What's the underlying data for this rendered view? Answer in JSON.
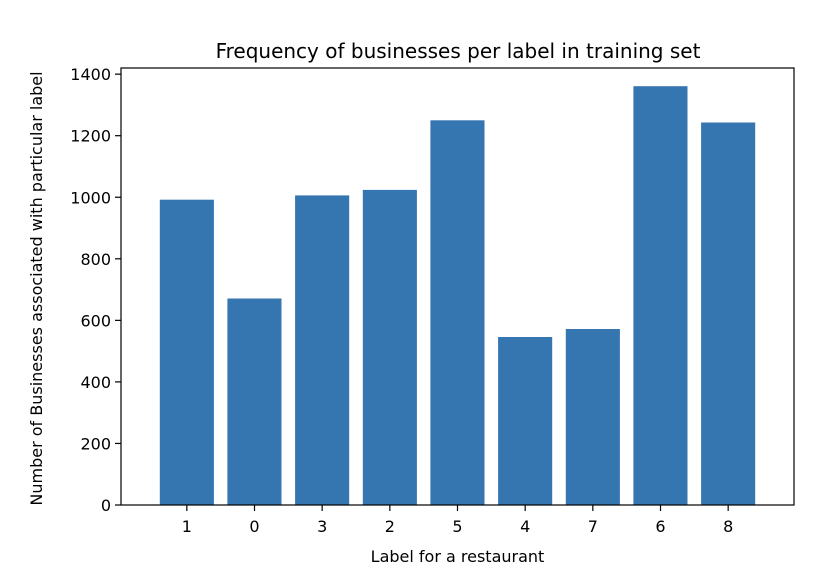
{
  "chart_data": {
    "type": "bar",
    "title": "Frequency of businesses per label in training set",
    "xlabel": "Label for a restaurant",
    "ylabel": "Number of Businesses associated with particular label",
    "categories": [
      "1",
      "0",
      "3",
      "2",
      "5",
      "4",
      "7",
      "6",
      "8"
    ],
    "values": [
      992,
      671,
      1006,
      1024,
      1250,
      546,
      572,
      1361,
      1243
    ],
    "ylim": [
      0,
      1420
    ],
    "yticks": [
      0,
      200,
      400,
      600,
      800,
      1000,
      1200,
      1400
    ],
    "ytick_labels": [
      "0",
      "200",
      "400",
      "600",
      "800",
      "1000",
      "1200",
      "1400"
    ],
    "bar_color": "#3575b0",
    "grid": false,
    "legend": "none"
  }
}
